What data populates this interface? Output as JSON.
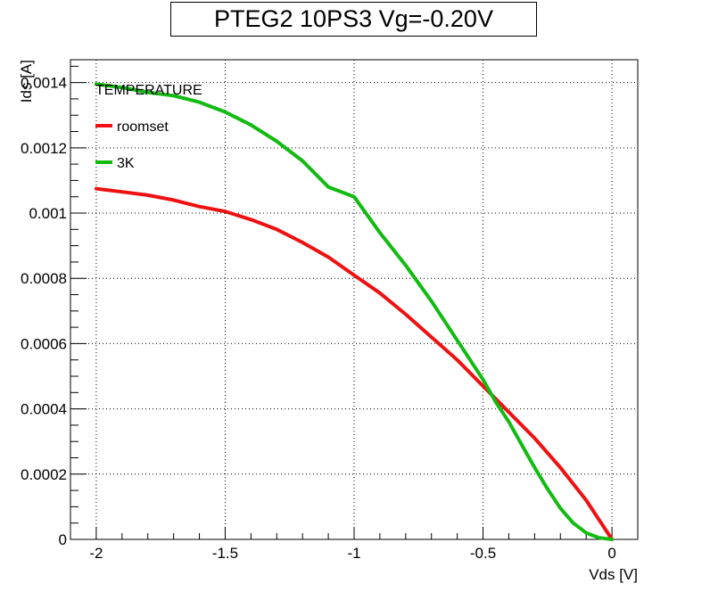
{
  "chart_data": {
    "type": "line",
    "title": "PTEG2 10PS3 Vg=-0.20V",
    "xlabel": "Vds [V]",
    "ylabel": "Ids [A]",
    "xlim": [
      -2.1,
      0.1
    ],
    "ylim": [
      0,
      0.00147
    ],
    "x_ticks": [
      {
        "value": -2,
        "label": "-2"
      },
      {
        "value": -1.5,
        "label": "-1.5"
      },
      {
        "value": -1,
        "label": "-1"
      },
      {
        "value": -0.5,
        "label": "-0.5"
      },
      {
        "value": 0,
        "label": "0"
      }
    ],
    "y_ticks": [
      {
        "value": 0,
        "label": "0"
      },
      {
        "value": 0.0002,
        "label": "0.0002"
      },
      {
        "value": 0.0004,
        "label": "0.0004"
      },
      {
        "value": 0.0006,
        "label": "0.0006"
      },
      {
        "value": 0.0008,
        "label": "0.0008"
      },
      {
        "value": 0.001,
        "label": "0.001"
      },
      {
        "value": 0.0012,
        "label": "0.0012"
      },
      {
        "value": 0.0014,
        "label": "0.0014"
      }
    ],
    "grid": true,
    "legend": {
      "title": "TEMPERATURE",
      "position": "top-left"
    },
    "series": [
      {
        "name": "roomset",
        "color": "#ee1111",
        "points": [
          [
            -2.0,
            0.001075
          ],
          [
            -1.9,
            0.001065
          ],
          [
            -1.8,
            0.001055
          ],
          [
            -1.7,
            0.00104
          ],
          [
            -1.6,
            0.00102
          ],
          [
            -1.5,
            0.001005
          ],
          [
            -1.4,
            0.00098
          ],
          [
            -1.3,
            0.00095
          ],
          [
            -1.2,
            0.00091
          ],
          [
            -1.1,
            0.000865
          ],
          [
            -1.0,
            0.00081
          ],
          [
            -0.9,
            0.000755
          ],
          [
            -0.8,
            0.00069
          ],
          [
            -0.7,
            0.00062
          ],
          [
            -0.6,
            0.00055
          ],
          [
            -0.5,
            0.00047
          ],
          [
            -0.4,
            0.00039
          ],
          [
            -0.3,
            0.00031
          ],
          [
            -0.2,
            0.00022
          ],
          [
            -0.1,
            0.00012
          ],
          [
            -0.05,
            6e-05
          ],
          [
            0.0,
            0.0
          ]
        ]
      },
      {
        "name": "3K",
        "color": "#11bb11",
        "points": [
          [
            -2.0,
            0.001395
          ],
          [
            -1.9,
            0.001385
          ],
          [
            -1.8,
            0.00137
          ],
          [
            -1.7,
            0.00136
          ],
          [
            -1.6,
            0.00134
          ],
          [
            -1.5,
            0.00131
          ],
          [
            -1.4,
            0.00127
          ],
          [
            -1.3,
            0.00122
          ],
          [
            -1.2,
            0.00116
          ],
          [
            -1.1,
            0.00108
          ],
          [
            -1.0,
            0.00105
          ],
          [
            -0.9,
            0.00094
          ],
          [
            -0.8,
            0.00084
          ],
          [
            -0.7,
            0.00073
          ],
          [
            -0.6,
            0.00061
          ],
          [
            -0.5,
            0.00049
          ],
          [
            -0.45,
            0.00042
          ],
          [
            -0.4,
            0.00036
          ],
          [
            -0.35,
            0.00029
          ],
          [
            -0.3,
            0.00022
          ],
          [
            -0.25,
            0.000155
          ],
          [
            -0.2,
            9.5e-05
          ],
          [
            -0.15,
            5e-05
          ],
          [
            -0.1,
            2e-05
          ],
          [
            -0.05,
            5e-06
          ],
          [
            0.0,
            0.0
          ]
        ]
      }
    ]
  }
}
